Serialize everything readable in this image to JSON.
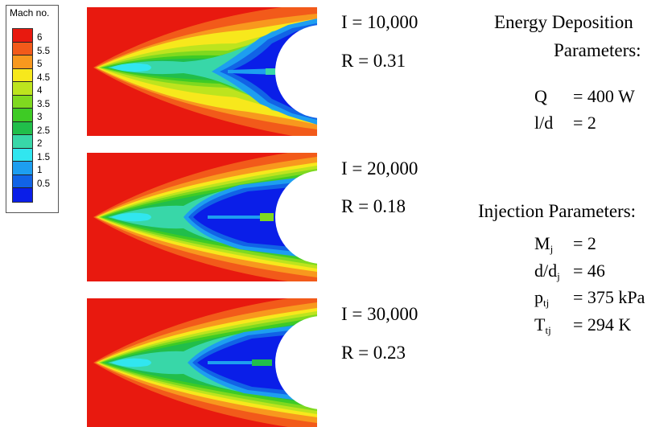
{
  "legend": {
    "title": "Mach no.",
    "swatches": [
      "#e8190f",
      "#f25a1a",
      "#f8981e",
      "#f7e81c",
      "#bde41e",
      "#7fd91f",
      "#3ecb25",
      "#21be4a",
      "#38d7a8",
      "#31e6ef",
      "#1d9ef0",
      "#1163e6",
      "#0a1ee8"
    ],
    "ticks": [
      "6",
      "5.5",
      "5",
      "4.5",
      "4",
      "3.5",
      "3",
      "2.5",
      "2",
      "1.5",
      "1",
      "0.5"
    ]
  },
  "cases": [
    {
      "I": "I = 10,000",
      "R": "R = 0.31"
    },
    {
      "I": "I = 20,000",
      "R": "R = 0.18"
    },
    {
      "I": "I = 30,000",
      "R": "R = 0.23"
    }
  ],
  "energy": {
    "heading_line1": "Energy Deposition",
    "heading_line2": "Parameters:",
    "params": [
      {
        "symbol": "Q",
        "value": "=  400 W"
      },
      {
        "symbol": "l/d",
        "value": "=  2"
      }
    ]
  },
  "injection": {
    "heading": "Injection Parameters:",
    "params": [
      {
        "base": "M",
        "sub": "j",
        "value": "=  2"
      },
      {
        "base": "d/d",
        "sub": "j",
        "value": "=  46"
      },
      {
        "base": "p",
        "sub": "tj",
        "value": "=  375 kPa"
      },
      {
        "base": "T",
        "sub": "tj",
        "value": "=  294 K"
      }
    ]
  }
}
